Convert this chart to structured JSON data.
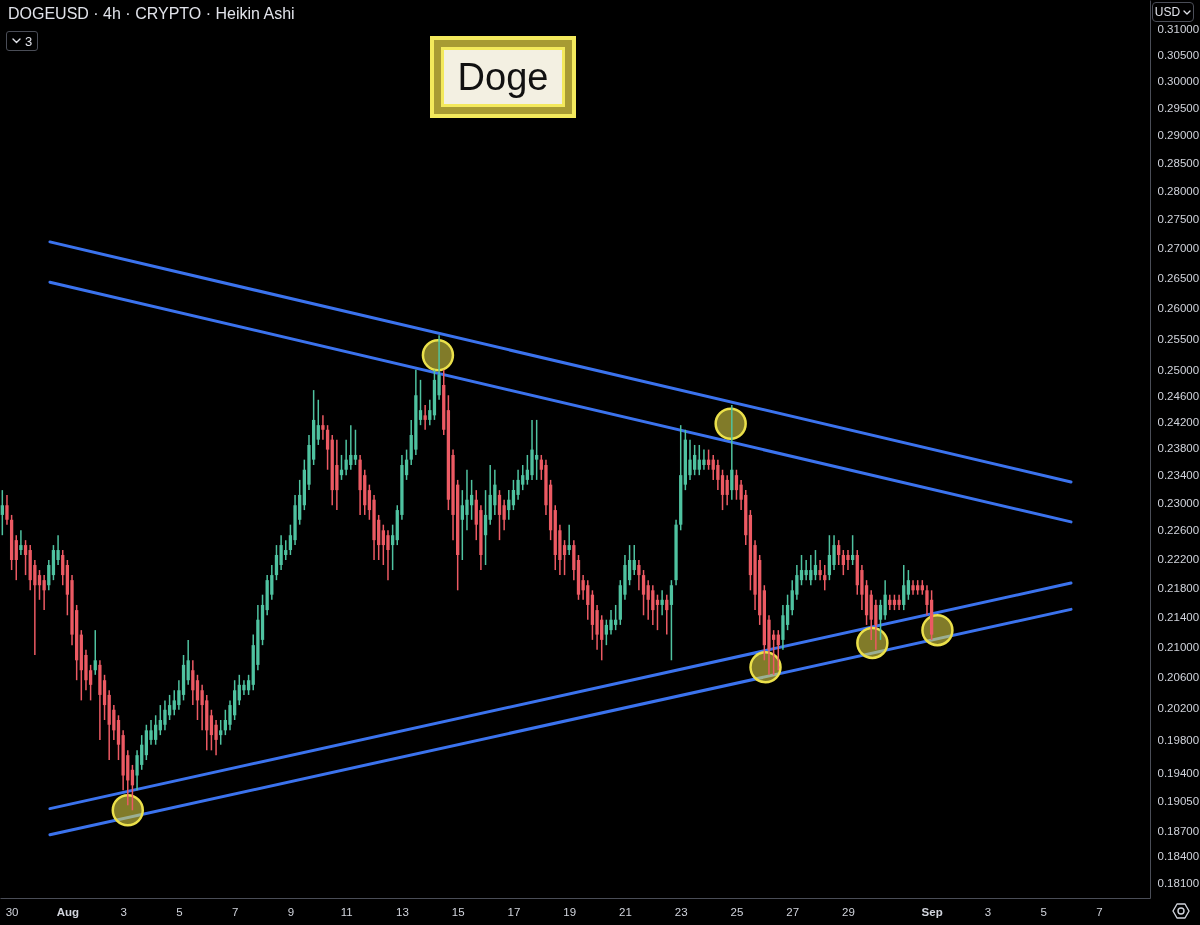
{
  "chart_data": {
    "type": "candlestick",
    "title": "Doge",
    "subtitle": "DOGEUSD · 4h · CRYPTO · Heikin Ashi",
    "ylabel": "USD",
    "annotations": [
      "3"
    ],
    "log": "y",
    "xlim": [
      "--07-29T14:00",
      "--09-08T20:00"
    ],
    "ylim": [
      0.1793,
      0.3159
    ],
    "xticks": [
      {
        "value": "--07-30",
        "label": "30"
      },
      {
        "value": "--08-01",
        "label": "Aug"
      },
      {
        "value": "--08-03",
        "label": "3"
      },
      {
        "value": "--08-05",
        "label": "5"
      },
      {
        "value": "--08-07",
        "label": "7"
      },
      {
        "value": "--08-09",
        "label": "9"
      },
      {
        "value": "--08-11",
        "label": "11"
      },
      {
        "value": "--08-13",
        "label": "13"
      },
      {
        "value": "--08-15",
        "label": "15"
      },
      {
        "value": "--08-17",
        "label": "17"
      },
      {
        "value": "--08-19",
        "label": "19"
      },
      {
        "value": "--08-21",
        "label": "21"
      },
      {
        "value": "--08-23",
        "label": "23"
      },
      {
        "value": "--08-25",
        "label": "25"
      },
      {
        "value": "--08-27",
        "label": "27"
      },
      {
        "value": "--08-29",
        "label": "29"
      },
      {
        "value": "--09-01",
        "label": "Sep"
      },
      {
        "value": "--09-03",
        "label": "3"
      },
      {
        "value": "--09-05",
        "label": "5"
      },
      {
        "value": "--09-07",
        "label": "7"
      }
    ],
    "yticks": [
      {
        "value": 0.181,
        "label": "0.18100"
      },
      {
        "value": 0.184,
        "label": "0.18400"
      },
      {
        "value": 0.187,
        "label": "0.18700"
      },
      {
        "value": 0.1905,
        "label": "0.19050"
      },
      {
        "value": 0.194,
        "label": "0.19400"
      },
      {
        "value": 0.198,
        "label": "0.19800"
      },
      {
        "value": 0.202,
        "label": "0.20200"
      },
      {
        "value": 0.206,
        "label": "0.20600"
      },
      {
        "value": 0.21,
        "label": "0.21000"
      },
      {
        "value": 0.214,
        "label": "0.21400"
      },
      {
        "value": 0.218,
        "label": "0.21800"
      },
      {
        "value": 0.222,
        "label": "0.22200"
      },
      {
        "value": 0.226,
        "label": "0.22600"
      },
      {
        "value": 0.23,
        "label": "0.23000"
      },
      {
        "value": 0.234,
        "label": "0.23400"
      },
      {
        "value": 0.238,
        "label": "0.23800"
      },
      {
        "value": 0.242,
        "label": "0.24200"
      },
      {
        "value": 0.246,
        "label": "0.24600"
      },
      {
        "value": 0.25,
        "label": "0.25000"
      },
      {
        "value": 0.255,
        "label": "0.25500"
      },
      {
        "value": 0.26,
        "label": "0.26000"
      },
      {
        "value": 0.265,
        "label": "0.26500"
      },
      {
        "value": 0.27,
        "label": "0.27000"
      },
      {
        "value": 0.275,
        "label": "0.27500"
      },
      {
        "value": 0.28,
        "label": "0.28000"
      },
      {
        "value": 0.285,
        "label": "0.28500"
      },
      {
        "value": 0.29,
        "label": "0.29000"
      },
      {
        "value": 0.295,
        "label": "0.29500"
      },
      {
        "value": 0.3,
        "label": "0.30000"
      },
      {
        "value": 0.305,
        "label": "0.30500"
      },
      {
        "value": 0.31,
        "label": "0.31000"
      }
    ],
    "series": [
      {
        "x": [
          "--07-29T16:00",
          "--07-29T20:00",
          "--07-30T00:00",
          "--07-30T04:00",
          "--07-30T08:00",
          "--07-30T12:00",
          "--07-30T16:00",
          "--07-30T20:00",
          "--07-31T00:00",
          "--07-31T04:00",
          "--07-31T08:00",
          "--07-31T12:00",
          "--07-31T16:00",
          "--07-31T20:00",
          "--08-01T00:00",
          "--08-01T04:00",
          "--08-01T08:00",
          "--08-01T12:00",
          "--08-01T16:00",
          "--08-01T20:00",
          "--08-02T00:00",
          "--08-02T04:00",
          "--08-02T08:00",
          "--08-02T12:00",
          "--08-02T16:00",
          "--08-02T20:00",
          "--08-03T00:00",
          "--08-03T04:00",
          "--08-03T08:00",
          "--08-03T12:00",
          "--08-03T16:00",
          "--08-03T20:00",
          "--08-04T00:00",
          "--08-04T04:00",
          "--08-04T08:00",
          "--08-04T12:00",
          "--08-04T16:00",
          "--08-04T20:00",
          "--08-05T00:00",
          "--08-05T04:00",
          "--08-05T08:00",
          "--08-05T12:00",
          "--08-05T16:00",
          "--08-05T20:00",
          "--08-06T00:00",
          "--08-06T04:00",
          "--08-06T08:00",
          "--08-06T12:00",
          "--08-06T16:00",
          "--08-06T20:00",
          "--08-07T00:00",
          "--08-07T04:00",
          "--08-07T08:00",
          "--08-07T12:00",
          "--08-07T16:00",
          "--08-07T20:00",
          "--08-08T00:00",
          "--08-08T04:00",
          "--08-08T08:00",
          "--08-08T12:00",
          "--08-08T16:00",
          "--08-08T20:00",
          "--08-09T00:00",
          "--08-09T04:00",
          "--08-09T08:00",
          "--08-09T12:00",
          "--08-09T16:00",
          "--08-09T20:00",
          "--08-10T00:00",
          "--08-10T04:00",
          "--08-10T08:00",
          "--08-10T12:00",
          "--08-10T16:00",
          "--08-10T20:00",
          "--08-11T00:00",
          "--08-11T04:00",
          "--08-11T08:00",
          "--08-11T12:00",
          "--08-11T16:00",
          "--08-11T20:00",
          "--08-12T00:00",
          "--08-12T04:00",
          "--08-12T08:00",
          "--08-12T12:00",
          "--08-12T16:00",
          "--08-12T20:00",
          "--08-13T00:00",
          "--08-13T04:00",
          "--08-13T08:00",
          "--08-13T12:00",
          "--08-13T16:00",
          "--08-13T20:00",
          "--08-14T00:00",
          "--08-14T04:00",
          "--08-14T08:00",
          "--08-14T12:00",
          "--08-14T16:00",
          "--08-14T20:00",
          "--08-15T00:00",
          "--08-15T04:00",
          "--08-15T08:00",
          "--08-15T12:00",
          "--08-15T16:00",
          "--08-15T20:00",
          "--08-16T00:00",
          "--08-16T04:00",
          "--08-16T08:00",
          "--08-16T12:00",
          "--08-16T16:00",
          "--08-16T20:00",
          "--08-17T00:00",
          "--08-17T04:00",
          "--08-17T08:00",
          "--08-17T12:00",
          "--08-17T16:00",
          "--08-17T20:00",
          "--08-18T00:00",
          "--08-18T04:00",
          "--08-18T08:00",
          "--08-18T12:00",
          "--08-18T16:00",
          "--08-18T20:00",
          "--08-19T00:00",
          "--08-19T04:00",
          "--08-19T08:00",
          "--08-19T12:00",
          "--08-19T16:00",
          "--08-19T20:00",
          "--08-20T00:00",
          "--08-20T04:00",
          "--08-20T08:00",
          "--08-20T12:00",
          "--08-20T16:00",
          "--08-20T20:00",
          "--08-21T00:00",
          "--08-21T04:00",
          "--08-21T08:00",
          "--08-21T12:00",
          "--08-21T16:00",
          "--08-21T20:00",
          "--08-22T00:00",
          "--08-22T04:00",
          "--08-22T08:00",
          "--08-22T12:00",
          "--08-22T16:00",
          "--08-22T20:00",
          "--08-23T00:00",
          "--08-23T04:00",
          "--08-23T08:00",
          "--08-23T12:00",
          "--08-23T16:00",
          "--08-23T20:00",
          "--08-24T00:00",
          "--08-24T04:00",
          "--08-24T08:00",
          "--08-24T12:00",
          "--08-24T16:00",
          "--08-24T20:00",
          "--08-25T00:00",
          "--08-25T04:00",
          "--08-25T08:00",
          "--08-25T12:00",
          "--08-25T16:00",
          "--08-25T20:00",
          "--08-26T00:00",
          "--08-26T04:00",
          "--08-26T08:00",
          "--08-26T12:00",
          "--08-26T16:00",
          "--08-26T20:00",
          "--08-27T00:00",
          "--08-27T04:00",
          "--08-27T08:00",
          "--08-27T12:00",
          "--08-27T16:00",
          "--08-27T20:00",
          "--08-28T00:00",
          "--08-28T04:00",
          "--08-28T08:00",
          "--08-28T12:00",
          "--08-28T16:00",
          "--08-28T20:00",
          "--08-29T00:00",
          "--08-29T04:00",
          "--08-29T08:00",
          "--08-29T12:00",
          "--08-29T16:00",
          "--08-29T20:00",
          "--08-30T00:00",
          "--08-30T04:00",
          "--08-30T08:00",
          "--08-30T12:00",
          "--08-30T16:00",
          "--08-30T20:00",
          "--08-31T00:00",
          "--08-31T04:00",
          "--08-31T08:00",
          "--08-31T12:00",
          "--08-31T16:00",
          "--08-31T20:00",
          "--09-01T00:00"
        ],
        "ohlc": [
          [
            0.2283,
            0.2319,
            0.2254,
            0.2297
          ],
          [
            0.2297,
            0.2312,
            0.2269,
            0.2276
          ],
          [
            0.2276,
            0.2283,
            0.2205,
            0.2219
          ],
          [
            0.2247,
            0.2254,
            0.2191,
            0.2219
          ],
          [
            0.2233,
            0.2261,
            0.2226,
            0.224
          ],
          [
            0.224,
            0.2247,
            0.2198,
            0.2226
          ],
          [
            0.2233,
            0.224,
            0.2177,
            0.2191
          ],
          [
            0.2212,
            0.2219,
            0.209,
            0.2184
          ],
          [
            0.2198,
            0.2205,
            0.2164,
            0.2184
          ],
          [
            0.2191,
            0.2198,
            0.215,
            0.2177
          ],
          [
            0.2184,
            0.2219,
            0.2177,
            0.2212
          ],
          [
            0.2198,
            0.224,
            0.2191,
            0.2233
          ],
          [
            0.2219,
            0.2254,
            0.2212,
            0.2233
          ],
          [
            0.2226,
            0.2233,
            0.2184,
            0.2198
          ],
          [
            0.2212,
            0.2219,
            0.2143,
            0.2171
          ],
          [
            0.2191,
            0.2198,
            0.2103,
            0.2117
          ],
          [
            0.215,
            0.2157,
            0.2057,
            0.2083
          ],
          [
            0.2117,
            0.2123,
            0.2031,
            0.207
          ],
          [
            0.209,
            0.2097,
            0.2044,
            0.2057
          ],
          [
            0.207,
            0.2077,
            0.2031,
            0.2051
          ],
          [
            0.207,
            0.2123,
            0.2064,
            0.2083
          ],
          [
            0.2077,
            0.2083,
            0.1981,
            0.2038
          ],
          [
            0.2057,
            0.2064,
            0.2006,
            0.2025
          ],
          [
            0.2038,
            0.2044,
            0.1956,
            0.2
          ],
          [
            0.2019,
            0.2025,
            0.1981,
            0.1993
          ],
          [
            0.2006,
            0.2012,
            0.1956,
            0.1975
          ],
          [
            0.1987,
            0.1993,
            0.1919,
            0.1937
          ],
          [
            0.1962,
            0.1968,
            0.1901,
            0.1931
          ],
          [
            0.1944,
            0.195,
            0.1895,
            0.1925
          ],
          [
            0.1937,
            0.1968,
            0.1919,
            0.1962
          ],
          [
            0.195,
            0.1987,
            0.1944,
            0.1975
          ],
          [
            0.1962,
            0.2,
            0.1956,
            0.1993
          ],
          [
            0.1981,
            0.2006,
            0.1975,
            0.1993
          ],
          [
            0.1981,
            0.2012,
            0.1975,
            0.2
          ],
          [
            0.1993,
            0.2025,
            0.1987,
            0.2006
          ],
          [
            0.2,
            0.2031,
            0.1993,
            0.2019
          ],
          [
            0.2012,
            0.2038,
            0.2006,
            0.2025
          ],
          [
            0.2019,
            0.2044,
            0.2012,
            0.2031
          ],
          [
            0.2025,
            0.2057,
            0.2019,
            0.2044
          ],
          [
            0.2038,
            0.209,
            0.2031,
            0.2077
          ],
          [
            0.2057,
            0.211,
            0.2051,
            0.2083
          ],
          [
            0.207,
            0.2083,
            0.2025,
            0.2044
          ],
          [
            0.2057,
            0.2064,
            0.2006,
            0.2031
          ],
          [
            0.2044,
            0.2051,
            0.1993,
            0.2025
          ],
          [
            0.2031,
            0.2038,
            0.1968,
            0.1993
          ],
          [
            0.2012,
            0.2019,
            0.1968,
            0.1987
          ],
          [
            0.2,
            0.2006,
            0.1962,
            0.1981
          ],
          [
            0.1987,
            0.2006,
            0.1975,
            0.1993
          ],
          [
            0.1993,
            0.2019,
            0.1987,
            0.2006
          ],
          [
            0.2,
            0.2031,
            0.1993,
            0.2025
          ],
          [
            0.2012,
            0.2057,
            0.2006,
            0.2044
          ],
          [
            0.2031,
            0.2064,
            0.2025,
            0.2051
          ],
          [
            0.2044,
            0.2057,
            0.2038,
            0.2051
          ],
          [
            0.2044,
            0.2064,
            0.2038,
            0.2057
          ],
          [
            0.2051,
            0.2117,
            0.2044,
            0.2103
          ],
          [
            0.2077,
            0.2157,
            0.207,
            0.2137
          ],
          [
            0.211,
            0.2171,
            0.2103,
            0.2157
          ],
          [
            0.215,
            0.2198,
            0.2143,
            0.2191
          ],
          [
            0.2171,
            0.2212,
            0.2164,
            0.2198
          ],
          [
            0.2198,
            0.224,
            0.2191,
            0.2226
          ],
          [
            0.2212,
            0.2254,
            0.2205,
            0.224
          ],
          [
            0.2226,
            0.2247,
            0.2219,
            0.2233
          ],
          [
            0.2233,
            0.2269,
            0.2226,
            0.2254
          ],
          [
            0.2247,
            0.2312,
            0.224,
            0.2297
          ],
          [
            0.2276,
            0.2334,
            0.2269,
            0.2312
          ],
          [
            0.2297,
            0.2364,
            0.229,
            0.2349
          ],
          [
            0.2327,
            0.2401,
            0.2319,
            0.2386
          ],
          [
            0.2364,
            0.247,
            0.2356,
            0.2424
          ],
          [
            0.2394,
            0.2455,
            0.2386,
            0.2416
          ],
          [
            0.2416,
            0.2431,
            0.2394,
            0.2409
          ],
          [
            0.2409,
            0.2416,
            0.2349,
            0.2379
          ],
          [
            0.2394,
            0.2401,
            0.2297,
            0.2319
          ],
          [
            0.2356,
            0.2394,
            0.229,
            0.2319
          ],
          [
            0.2341,
            0.2371,
            0.2334,
            0.2349
          ],
          [
            0.2349,
            0.2394,
            0.2341,
            0.2364
          ],
          [
            0.2356,
            0.2416,
            0.2349,
            0.2371
          ],
          [
            0.2364,
            0.2409,
            0.2356,
            0.2371
          ],
          [
            0.2364,
            0.2371,
            0.2283,
            0.2319
          ],
          [
            0.2341,
            0.2349,
            0.2283,
            0.2297
          ],
          [
            0.2319,
            0.2327,
            0.2276,
            0.229
          ],
          [
            0.2305,
            0.2312,
            0.2219,
            0.2247
          ],
          [
            0.2276,
            0.2283,
            0.2219,
            0.224
          ],
          [
            0.2261,
            0.2269,
            0.2212,
            0.224
          ],
          [
            0.2254,
            0.2261,
            0.2191,
            0.2233
          ],
          [
            0.224,
            0.2269,
            0.2205,
            0.2254
          ],
          [
            0.2247,
            0.2297,
            0.224,
            0.229
          ],
          [
            0.2283,
            0.2371,
            0.2276,
            0.2356
          ],
          [
            0.2341,
            0.2379,
            0.2334,
            0.2364
          ],
          [
            0.2364,
            0.2424,
            0.2356,
            0.2401
          ],
          [
            0.2379,
            0.2502,
            0.2371,
            0.2462
          ],
          [
            0.2424,
            0.2486,
            0.2416,
            0.2439
          ],
          [
            0.2431,
            0.2447,
            0.2409,
            0.2424
          ],
          [
            0.2424,
            0.2455,
            0.2416,
            0.2439
          ],
          [
            0.2431,
            0.2502,
            0.2424,
            0.2486
          ],
          [
            0.2462,
            0.2557,
            0.2455,
            0.2494
          ],
          [
            0.2478,
            0.2502,
            0.2401,
            0.2409
          ],
          [
            0.2439,
            0.2462,
            0.229,
            0.2305
          ],
          [
            0.2371,
            0.2379,
            0.2247,
            0.2283
          ],
          [
            0.2327,
            0.2334,
            0.2177,
            0.2226
          ],
          [
            0.2276,
            0.2319,
            0.2219,
            0.2297
          ],
          [
            0.2283,
            0.2349,
            0.2261,
            0.2305
          ],
          [
            0.2297,
            0.2334,
            0.2276,
            0.2312
          ],
          [
            0.2305,
            0.2319,
            0.2247,
            0.2269
          ],
          [
            0.229,
            0.2297,
            0.2205,
            0.2226
          ],
          [
            0.2254,
            0.2319,
            0.2212,
            0.2283
          ],
          [
            0.2276,
            0.2356,
            0.2269,
            0.2312
          ],
          [
            0.2297,
            0.2349,
            0.2283,
            0.2327
          ],
          [
            0.2312,
            0.2319,
            0.2247,
            0.2283
          ],
          [
            0.2297,
            0.2305,
            0.2261,
            0.2276
          ],
          [
            0.229,
            0.2319,
            0.2276,
            0.2305
          ],
          [
            0.2297,
            0.2334,
            0.229,
            0.2319
          ],
          [
            0.2312,
            0.2349,
            0.2305,
            0.2334
          ],
          [
            0.2327,
            0.2356,
            0.2319,
            0.2341
          ],
          [
            0.2334,
            0.2371,
            0.2327,
            0.2349
          ],
          [
            0.2341,
            0.2424,
            0.2334,
            0.2379
          ],
          [
            0.2364,
            0.2424,
            0.2334,
            0.2371
          ],
          [
            0.2364,
            0.2371,
            0.2334,
            0.2349
          ],
          [
            0.2356,
            0.2364,
            0.2283,
            0.2297
          ],
          [
            0.2327,
            0.2334,
            0.2247,
            0.2261
          ],
          [
            0.229,
            0.2297,
            0.2205,
            0.2226
          ],
          [
            0.2261,
            0.2269,
            0.2198,
            0.2219
          ],
          [
            0.224,
            0.2247,
            0.2198,
            0.2226
          ],
          [
            0.2233,
            0.2269,
            0.2226,
            0.224
          ],
          [
            0.224,
            0.2247,
            0.2191,
            0.2205
          ],
          [
            0.2219,
            0.2226,
            0.2164,
            0.2171
          ],
          [
            0.2191,
            0.2198,
            0.2164,
            0.2177
          ],
          [
            0.2184,
            0.2191,
            0.2137,
            0.2157
          ],
          [
            0.2171,
            0.2177,
            0.211,
            0.213
          ],
          [
            0.215,
            0.2157,
            0.2097,
            0.2117
          ],
          [
            0.2137,
            0.2143,
            0.2083,
            0.211
          ],
          [
            0.2117,
            0.2137,
            0.2103,
            0.213
          ],
          [
            0.2123,
            0.215,
            0.2117,
            0.2137
          ],
          [
            0.213,
            0.2157,
            0.2123,
            0.2137
          ],
          [
            0.2137,
            0.2191,
            0.213,
            0.2184
          ],
          [
            0.2171,
            0.2226,
            0.2164,
            0.2212
          ],
          [
            0.2191,
            0.224,
            0.2184,
            0.2219
          ],
          [
            0.2205,
            0.224,
            0.2198,
            0.2219
          ],
          [
            0.2212,
            0.2219,
            0.2177,
            0.2198
          ],
          [
            0.2198,
            0.2205,
            0.2143,
            0.2171
          ],
          [
            0.2184,
            0.2191,
            0.2137,
            0.2164
          ],
          [
            0.2177,
            0.2184,
            0.213,
            0.215
          ],
          [
            0.2164,
            0.2171,
            0.2123,
            0.2157
          ],
          [
            0.2157,
            0.2177,
            0.2143,
            0.2164
          ],
          [
            0.2164,
            0.2171,
            0.2117,
            0.215
          ],
          [
            0.2157,
            0.2191,
            0.2083,
            0.2184
          ],
          [
            0.2191,
            0.2276,
            0.2184,
            0.2269
          ],
          [
            0.2269,
            0.2416,
            0.2261,
            0.2341
          ],
          [
            0.2327,
            0.2409,
            0.2319,
            0.2394
          ],
          [
            0.2341,
            0.2394,
            0.2334,
            0.2364
          ],
          [
            0.2349,
            0.2386,
            0.2341,
            0.2371
          ],
          [
            0.2349,
            0.2386,
            0.2341,
            0.2364
          ],
          [
            0.2356,
            0.2379,
            0.2349,
            0.2364
          ],
          [
            0.2364,
            0.2379,
            0.2349,
            0.2356
          ],
          [
            0.2364,
            0.2371,
            0.2334,
            0.2349
          ],
          [
            0.2356,
            0.2364,
            0.2319,
            0.2334
          ],
          [
            0.2341,
            0.2349,
            0.229,
            0.2312
          ],
          [
            0.2334,
            0.2341,
            0.2297,
            0.2312
          ],
          [
            0.2319,
            0.2447,
            0.2305,
            0.2349
          ],
          [
            0.2341,
            0.2349,
            0.2305,
            0.2319
          ],
          [
            0.2327,
            0.2334,
            0.229,
            0.2305
          ],
          [
            0.2312,
            0.2319,
            0.224,
            0.2254
          ],
          [
            0.2283,
            0.229,
            0.2177,
            0.2198
          ],
          [
            0.224,
            0.2247,
            0.215,
            0.2171
          ],
          [
            0.2219,
            0.2226,
            0.213,
            0.2143
          ],
          [
            0.2177,
            0.2184,
            0.2083,
            0.2103
          ],
          [
            0.2137,
            0.2143,
            0.2064,
            0.2097
          ],
          [
            0.2117,
            0.2123,
            0.2064,
            0.211
          ],
          [
            0.2117,
            0.2123,
            0.207,
            0.2103
          ],
          [
            0.211,
            0.2157,
            0.2097,
            0.2143
          ],
          [
            0.213,
            0.2171,
            0.2123,
            0.2157
          ],
          [
            0.215,
            0.2191,
            0.2143,
            0.2177
          ],
          [
            0.2171,
            0.2212,
            0.2164,
            0.2198
          ],
          [
            0.2191,
            0.2226,
            0.2184,
            0.2205
          ],
          [
            0.2198,
            0.2219,
            0.2191,
            0.2205
          ],
          [
            0.2191,
            0.2226,
            0.2184,
            0.2205
          ],
          [
            0.2198,
            0.2233,
            0.2191,
            0.2212
          ],
          [
            0.2205,
            0.2219,
            0.2191,
            0.2198
          ],
          [
            0.2198,
            0.2212,
            0.2177,
            0.2191
          ],
          [
            0.2198,
            0.2254,
            0.2191,
            0.2226
          ],
          [
            0.2212,
            0.2254,
            0.2205,
            0.224
          ],
          [
            0.224,
            0.2247,
            0.2212,
            0.2226
          ],
          [
            0.2226,
            0.2233,
            0.2198,
            0.2212
          ],
          [
            0.2226,
            0.2233,
            0.2205,
            0.2219
          ],
          [
            0.2219,
            0.2254,
            0.2212,
            0.2226
          ],
          [
            0.2226,
            0.2233,
            0.2171,
            0.2184
          ],
          [
            0.2205,
            0.2212,
            0.215,
            0.2171
          ],
          [
            0.2184,
            0.2191,
            0.213,
            0.2143
          ],
          [
            0.2171,
            0.2177,
            0.211,
            0.2137
          ],
          [
            0.2157,
            0.2164,
            0.2097,
            0.213
          ],
          [
            0.2137,
            0.2164,
            0.211,
            0.2157
          ],
          [
            0.2143,
            0.2191,
            0.2137,
            0.2171
          ],
          [
            0.2164,
            0.2171,
            0.215,
            0.2157
          ],
          [
            0.2164,
            0.2171,
            0.215,
            0.2157
          ],
          [
            0.2164,
            0.2171,
            0.215,
            0.2157
          ],
          [
            0.2157,
            0.2212,
            0.215,
            0.2184
          ],
          [
            0.2171,
            0.2205,
            0.2164,
            0.2191
          ],
          [
            0.2184,
            0.2191,
            0.2171,
            0.2177
          ],
          [
            0.2184,
            0.2191,
            0.2171,
            0.2177
          ],
          [
            0.2184,
            0.2191,
            0.2171,
            0.2177
          ],
          [
            0.2177,
            0.2184,
            0.2143,
            0.2157
          ],
          [
            0.2164,
            0.2177,
            0.211,
            0.2117
          ]
        ],
        "colors": [
          "#4fc2a0",
          "#ec5a63",
          "#ec5a63",
          "#ec5a63",
          "#4fc2a0",
          "#ec5a63",
          "#ec5a63",
          "#ec5a63",
          "#ec5a63",
          "#ec5a63",
          "#4fc2a0",
          "#4fc2a0",
          "#4fc2a0",
          "#ec5a63",
          "#ec5a63",
          "#ec5a63",
          "#ec5a63",
          "#ec5a63",
          "#ec5a63",
          "#ec5a63",
          "#4fc2a0",
          "#ec5a63",
          "#ec5a63",
          "#ec5a63",
          "#ec5a63",
          "#ec5a63",
          "#ec5a63",
          "#ec5a63",
          "#ec5a63",
          "#4fc2a0",
          "#4fc2a0",
          "#4fc2a0",
          "#4fc2a0",
          "#4fc2a0",
          "#4fc2a0",
          "#4fc2a0",
          "#4fc2a0",
          "#4fc2a0",
          "#4fc2a0",
          "#4fc2a0",
          "#4fc2a0",
          "#ec5a63",
          "#ec5a63",
          "#ec5a63",
          "#ec5a63",
          "#ec5a63",
          "#ec5a63",
          "#4fc2a0",
          "#4fc2a0",
          "#4fc2a0",
          "#4fc2a0",
          "#4fc2a0",
          "#4fc2a0",
          "#4fc2a0",
          "#4fc2a0",
          "#4fc2a0",
          "#4fc2a0",
          "#4fc2a0",
          "#4fc2a0",
          "#4fc2a0",
          "#4fc2a0",
          "#4fc2a0",
          "#4fc2a0",
          "#4fc2a0",
          "#4fc2a0",
          "#4fc2a0",
          "#4fc2a0",
          "#4fc2a0",
          "#4fc2a0",
          "#ec5a63",
          "#ec5a63",
          "#ec5a63",
          "#ec5a63",
          "#4fc2a0",
          "#4fc2a0",
          "#4fc2a0",
          "#4fc2a0",
          "#ec5a63",
          "#ec5a63",
          "#ec5a63",
          "#ec5a63",
          "#ec5a63",
          "#ec5a63",
          "#ec5a63",
          "#4fc2a0",
          "#4fc2a0",
          "#4fc2a0",
          "#4fc2a0",
          "#4fc2a0",
          "#4fc2a0",
          "#4fc2a0",
          "#ec5a63",
          "#4fc2a0",
          "#4fc2a0",
          "#4fc2a0",
          "#ec5a63",
          "#ec5a63",
          "#ec5a63",
          "#ec5a63",
          "#4fc2a0",
          "#4fc2a0",
          "#4fc2a0",
          "#ec5a63",
          "#ec5a63",
          "#4fc2a0",
          "#4fc2a0",
          "#4fc2a0",
          "#ec5a63",
          "#ec5a63",
          "#4fc2a0",
          "#4fc2a0",
          "#4fc2a0",
          "#4fc2a0",
          "#4fc2a0",
          "#4fc2a0",
          "#4fc2a0",
          "#ec5a63",
          "#ec5a63",
          "#ec5a63",
          "#ec5a63",
          "#ec5a63",
          "#ec5a63",
          "#4fc2a0",
          "#ec5a63",
          "#ec5a63",
          "#ec5a63",
          "#ec5a63",
          "#ec5a63",
          "#ec5a63",
          "#ec5a63",
          "#4fc2a0",
          "#4fc2a0",
          "#4fc2a0",
          "#4fc2a0",
          "#4fc2a0",
          "#4fc2a0",
          "#4fc2a0",
          "#ec5a63",
          "#ec5a63",
          "#ec5a63",
          "#ec5a63",
          "#ec5a63",
          "#4fc2a0",
          "#ec5a63",
          "#4fc2a0",
          "#4fc2a0",
          "#4fc2a0",
          "#4fc2a0",
          "#4fc2a0",
          "#4fc2a0",
          "#4fc2a0",
          "#4fc2a0",
          "#ec5a63",
          "#ec5a63",
          "#ec5a63",
          "#ec5a63",
          "#ec5a63",
          "#4fc2a0",
          "#ec5a63",
          "#ec5a63",
          "#ec5a63",
          "#ec5a63",
          "#ec5a63",
          "#ec5a63",
          "#ec5a63",
          "#ec5a63",
          "#ec5a63",
          "#ec5a63",
          "#4fc2a0",
          "#4fc2a0",
          "#4fc2a0",
          "#4fc2a0",
          "#4fc2a0",
          "#4fc2a0",
          "#4fc2a0",
          "#4fc2a0",
          "#ec5a63",
          "#ec5a63",
          "#4fc2a0",
          "#4fc2a0",
          "#ec5a63",
          "#ec5a63",
          "#ec5a63",
          "#4fc2a0",
          "#ec5a63",
          "#ec5a63",
          "#ec5a63",
          "#ec5a63",
          "#ec5a63",
          "#4fc2a0",
          "#4fc2a0",
          "#ec5a63",
          "#ec5a63",
          "#ec5a63",
          "#4fc2a0",
          "#4fc2a0",
          "#ec5a63",
          "#ec5a63",
          "#ec5a63",
          "#ec5a63",
          "#ec5a63"
        ]
      },
      {
        "type": "line",
        "color": "#3b73ee",
        "x": [
          "--07-31T09:00",
          "--09-06T00:00"
        ],
        "values": [
          0.2712,
          0.2331
        ]
      },
      {
        "type": "line",
        "color": "#3b73ee",
        "x": [
          "--07-31T09:00",
          "--09-06T00:00"
        ],
        "values": [
          0.2644,
          0.2273
        ]
      },
      {
        "type": "line",
        "color": "#3b73ee",
        "x": [
          "--07-31T09:00",
          "--09-06T00:00"
        ],
        "values": [
          0.1897,
          0.2187
        ]
      },
      {
        "type": "line",
        "color": "#3b73ee",
        "x": [
          "--07-31T09:00",
          "--09-06T00:00"
        ],
        "values": [
          0.1866,
          0.2151
        ]
      },
      {
        "type": "scatter",
        "color": "#ebe04a",
        "marker": "circle",
        "x": [
          "--08-03T04:00",
          "--08-14T07:00",
          "--08-24T19:00",
          "--08-26T01:00",
          "--08-29T21:00",
          "--09-01T05:00"
        ],
        "values": [
          0.1895,
          0.2525,
          0.2418,
          0.2074,
          0.2106,
          0.2123
        ]
      }
    ]
  }
}
